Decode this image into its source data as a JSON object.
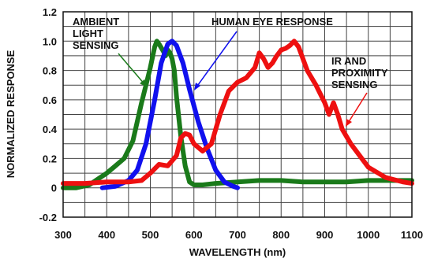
{
  "chart_data": {
    "type": "line",
    "title": "",
    "xlabel": "WAVELENGTH (nm)",
    "ylabel": "NORMALIZED RESPONSE",
    "xlim": [
      300,
      1100
    ],
    "ylim": [
      -0.2,
      1.2
    ],
    "x_ticks": [
      "300",
      "400",
      "500",
      "600",
      "700",
      "800",
      "900",
      "1000",
      "1100"
    ],
    "y_ticks": [
      "-0.2",
      "0",
      "0.2",
      "0.4",
      "0.6",
      "0.8",
      "1.0",
      "1.2"
    ],
    "grid": true,
    "series": [
      {
        "name": "AMBIENT LIGHT SENSING",
        "color": "#1a7a1a",
        "x": [
          300,
          330,
          360,
          380,
          400,
          420,
          440,
          460,
          470,
          480,
          490,
          500,
          510,
          515,
          520,
          530,
          535,
          540,
          545,
          550,
          555,
          560,
          570,
          580,
          590,
          600,
          620,
          650,
          700,
          750,
          800,
          850,
          900,
          950,
          1000,
          1050,
          1100
        ],
        "y": [
          0.0,
          0.0,
          0.02,
          0.06,
          0.1,
          0.15,
          0.2,
          0.32,
          0.45,
          0.58,
          0.7,
          0.82,
          0.96,
          1.0,
          0.98,
          0.93,
          0.9,
          0.94,
          0.92,
          0.88,
          0.8,
          0.62,
          0.35,
          0.15,
          0.04,
          0.02,
          0.02,
          0.03,
          0.04,
          0.05,
          0.05,
          0.04,
          0.04,
          0.04,
          0.05,
          0.05,
          0.05
        ]
      },
      {
        "name": "HUMAN EYE RESPONSE",
        "color": "#1010ee",
        "x": [
          390,
          420,
          450,
          470,
          490,
          510,
          525,
          540,
          550,
          560,
          575,
          590,
          610,
          630,
          650,
          670,
          690,
          700
        ],
        "y": [
          0.0,
          0.01,
          0.05,
          0.12,
          0.3,
          0.6,
          0.85,
          0.98,
          1.0,
          0.97,
          0.85,
          0.67,
          0.45,
          0.27,
          0.12,
          0.04,
          0.01,
          0.0
        ]
      },
      {
        "name": "IR AND PROXIMITY SENSING",
        "color": "#ee1010",
        "x": [
          300,
          350,
          400,
          450,
          480,
          500,
          520,
          540,
          560,
          570,
          580,
          590,
          600,
          620,
          640,
          660,
          680,
          700,
          720,
          740,
          750,
          760,
          770,
          780,
          790,
          800,
          810,
          820,
          830,
          840,
          860,
          880,
          900,
          910,
          920,
          930,
          940,
          960,
          980,
          1000,
          1040,
          1080,
          1100
        ],
        "y": [
          0.03,
          0.03,
          0.04,
          0.04,
          0.05,
          0.1,
          0.16,
          0.15,
          0.22,
          0.34,
          0.37,
          0.36,
          0.3,
          0.25,
          0.3,
          0.5,
          0.66,
          0.72,
          0.75,
          0.82,
          0.92,
          0.88,
          0.82,
          0.85,
          0.9,
          0.94,
          0.95,
          0.97,
          1.0,
          0.96,
          0.8,
          0.7,
          0.58,
          0.5,
          0.58,
          0.5,
          0.4,
          0.3,
          0.22,
          0.14,
          0.07,
          0.04,
          0.03
        ]
      }
    ],
    "annotations": [
      {
        "lines": [
          "AMBIENT",
          "LIGHT",
          "SENSING"
        ],
        "color": "#1a7a1a"
      },
      {
        "lines": [
          "HUMAN EYE RESPONSE"
        ],
        "color": "#1010ee"
      },
      {
        "lines": [
          "IR AND",
          "PROXIMITY",
          "SENSING"
        ],
        "color": "#ee1010"
      }
    ]
  }
}
